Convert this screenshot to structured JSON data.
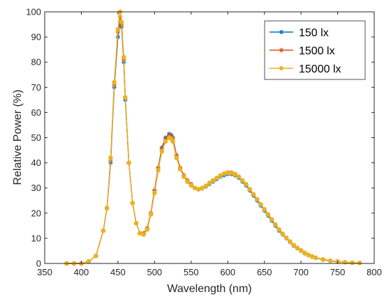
{
  "chart_data": {
    "type": "line",
    "title": "",
    "xlabel": "Wavelength (nm)",
    "ylabel": "Relative Power (%)",
    "xlim": [
      350,
      800
    ],
    "ylim": [
      0,
      100
    ],
    "xticks": [
      350,
      400,
      450,
      500,
      550,
      600,
      650,
      700,
      750,
      800
    ],
    "yticks": [
      0,
      10,
      20,
      30,
      40,
      50,
      60,
      70,
      80,
      90,
      100
    ],
    "grid": false,
    "legend_position": "top-right",
    "series": [
      {
        "name": "150 lx",
        "color": "#0072BD",
        "marker": "asterisk",
        "points": [
          [
            380,
            0
          ],
          [
            390,
            0
          ],
          [
            400,
            0
          ],
          [
            410,
            0.8
          ],
          [
            420,
            3
          ],
          [
            430,
            13
          ],
          [
            435,
            22
          ],
          [
            440,
            40
          ],
          [
            445,
            70
          ],
          [
            450,
            90
          ],
          [
            453,
            96
          ],
          [
            455,
            94
          ],
          [
            458,
            80
          ],
          [
            460,
            65
          ],
          [
            465,
            40
          ],
          [
            470,
            24
          ],
          [
            475,
            16
          ],
          [
            480,
            12
          ],
          [
            485,
            12
          ],
          [
            490,
            14
          ],
          [
            495,
            20
          ],
          [
            500,
            29
          ],
          [
            505,
            38
          ],
          [
            510,
            46
          ],
          [
            515,
            50
          ],
          [
            520,
            51.5
          ],
          [
            523,
            51
          ],
          [
            525,
            50
          ],
          [
            530,
            43
          ],
          [
            535,
            38
          ],
          [
            540,
            35
          ],
          [
            545,
            33
          ],
          [
            550,
            31.5
          ],
          [
            555,
            30
          ],
          [
            560,
            29.5
          ],
          [
            565,
            29.8
          ],
          [
            570,
            30.5
          ],
          [
            575,
            31.5
          ],
          [
            580,
            32.5
          ],
          [
            585,
            33.5
          ],
          [
            590,
            34.5
          ],
          [
            595,
            35
          ],
          [
            600,
            35.5
          ],
          [
            605,
            35.5
          ],
          [
            610,
            35
          ],
          [
            615,
            34
          ],
          [
            620,
            32.5
          ],
          [
            625,
            31
          ],
          [
            630,
            29
          ],
          [
            635,
            27
          ],
          [
            640,
            25
          ],
          [
            645,
            23
          ],
          [
            650,
            21
          ],
          [
            655,
            19
          ],
          [
            660,
            17
          ],
          [
            665,
            15
          ],
          [
            670,
            13
          ],
          [
            675,
            11.5
          ],
          [
            680,
            10
          ],
          [
            685,
            8.5
          ],
          [
            690,
            7
          ],
          [
            695,
            6
          ],
          [
            700,
            5
          ],
          [
            705,
            4
          ],
          [
            710,
            3.3
          ],
          [
            715,
            2.7
          ],
          [
            720,
            2.2
          ],
          [
            730,
            1.5
          ],
          [
            740,
            1
          ],
          [
            750,
            0.7
          ],
          [
            760,
            0.5
          ],
          [
            770,
            0.3
          ],
          [
            780,
            0.2
          ]
        ]
      },
      {
        "name": "1500 lx",
        "color": "#D95319",
        "marker": "asterisk",
        "points": [
          [
            380,
            0
          ],
          [
            390,
            0
          ],
          [
            400,
            0
          ],
          [
            410,
            0.8
          ],
          [
            420,
            3
          ],
          [
            430,
            13
          ],
          [
            435,
            22
          ],
          [
            440,
            41
          ],
          [
            445,
            71
          ],
          [
            450,
            92
          ],
          [
            453,
            98
          ],
          [
            455,
            95
          ],
          [
            458,
            81
          ],
          [
            460,
            66
          ],
          [
            465,
            40
          ],
          [
            470,
            24
          ],
          [
            475,
            16
          ],
          [
            480,
            12
          ],
          [
            485,
            12
          ],
          [
            490,
            14
          ],
          [
            495,
            20
          ],
          [
            500,
            29
          ],
          [
            505,
            38
          ],
          [
            510,
            45.5
          ],
          [
            515,
            49.5
          ],
          [
            520,
            51
          ],
          [
            523,
            50.5
          ],
          [
            525,
            49.5
          ],
          [
            530,
            43
          ],
          [
            535,
            38
          ],
          [
            540,
            35
          ],
          [
            545,
            33
          ],
          [
            550,
            31.5
          ],
          [
            555,
            30
          ],
          [
            560,
            29.5
          ],
          [
            565,
            30
          ],
          [
            570,
            30.8
          ],
          [
            575,
            32
          ],
          [
            580,
            33
          ],
          [
            585,
            34
          ],
          [
            590,
            35
          ],
          [
            595,
            35.7
          ],
          [
            600,
            36.2
          ],
          [
            605,
            36.2
          ],
          [
            610,
            35.6
          ],
          [
            615,
            34.5
          ],
          [
            620,
            33
          ],
          [
            625,
            31.5
          ],
          [
            630,
            29.5
          ],
          [
            635,
            27.5
          ],
          [
            640,
            25.5
          ],
          [
            645,
            23.5
          ],
          [
            650,
            21.5
          ],
          [
            655,
            19.5
          ],
          [
            660,
            17.5
          ],
          [
            665,
            15.5
          ],
          [
            670,
            13.5
          ],
          [
            675,
            11.8
          ],
          [
            680,
            10.2
          ],
          [
            685,
            8.7
          ],
          [
            690,
            7.3
          ],
          [
            695,
            6.2
          ],
          [
            700,
            5.2
          ],
          [
            705,
            4.2
          ],
          [
            710,
            3.4
          ],
          [
            715,
            2.8
          ],
          [
            720,
            2.3
          ],
          [
            730,
            1.6
          ],
          [
            740,
            1.1
          ],
          [
            750,
            0.8
          ],
          [
            760,
            0.5
          ],
          [
            770,
            0.3
          ],
          [
            780,
            0.2
          ]
        ]
      },
      {
        "name": "15000 lx",
        "color": "#EDB120",
        "marker": "circle",
        "points": [
          [
            380,
            0
          ],
          [
            390,
            0
          ],
          [
            400,
            0
          ],
          [
            410,
            0.8
          ],
          [
            420,
            3
          ],
          [
            430,
            13
          ],
          [
            435,
            22
          ],
          [
            440,
            42
          ],
          [
            445,
            72
          ],
          [
            450,
            93
          ],
          [
            453,
            100
          ],
          [
            455,
            96
          ],
          [
            458,
            82
          ],
          [
            460,
            66
          ],
          [
            465,
            40
          ],
          [
            470,
            24
          ],
          [
            475,
            16
          ],
          [
            480,
            12
          ],
          [
            485,
            11.5
          ],
          [
            490,
            13.5
          ],
          [
            495,
            19.5
          ],
          [
            500,
            28
          ],
          [
            505,
            37
          ],
          [
            510,
            44.5
          ],
          [
            515,
            48.5
          ],
          [
            520,
            50
          ],
          [
            523,
            49.5
          ],
          [
            525,
            48.5
          ],
          [
            530,
            42
          ],
          [
            535,
            37.5
          ],
          [
            540,
            34.5
          ],
          [
            545,
            32.5
          ],
          [
            550,
            31
          ],
          [
            555,
            30
          ],
          [
            560,
            29.5
          ],
          [
            565,
            30
          ],
          [
            570,
            30.8
          ],
          [
            575,
            32
          ],
          [
            580,
            33
          ],
          [
            585,
            34
          ],
          [
            590,
            35
          ],
          [
            595,
            35.7
          ],
          [
            600,
            36
          ],
          [
            605,
            36
          ],
          [
            610,
            35.5
          ],
          [
            615,
            34.5
          ],
          [
            620,
            33
          ],
          [
            625,
            31.5
          ],
          [
            630,
            29.5
          ],
          [
            635,
            27.5
          ],
          [
            640,
            25.5
          ],
          [
            645,
            23.5
          ],
          [
            650,
            21.5
          ],
          [
            655,
            19.5
          ],
          [
            660,
            17.5
          ],
          [
            665,
            15.5
          ],
          [
            670,
            13.5
          ],
          [
            675,
            11.8
          ],
          [
            680,
            10.2
          ],
          [
            685,
            8.7
          ],
          [
            690,
            7.3
          ],
          [
            695,
            6.2
          ],
          [
            700,
            5.2
          ],
          [
            705,
            4.2
          ],
          [
            710,
            3.4
          ],
          [
            715,
            2.8
          ],
          [
            720,
            2.3
          ],
          [
            730,
            1.6
          ],
          [
            740,
            1.1
          ],
          [
            750,
            0.8
          ],
          [
            760,
            0.5
          ],
          [
            770,
            0.3
          ],
          [
            780,
            0.2
          ]
        ]
      }
    ]
  }
}
